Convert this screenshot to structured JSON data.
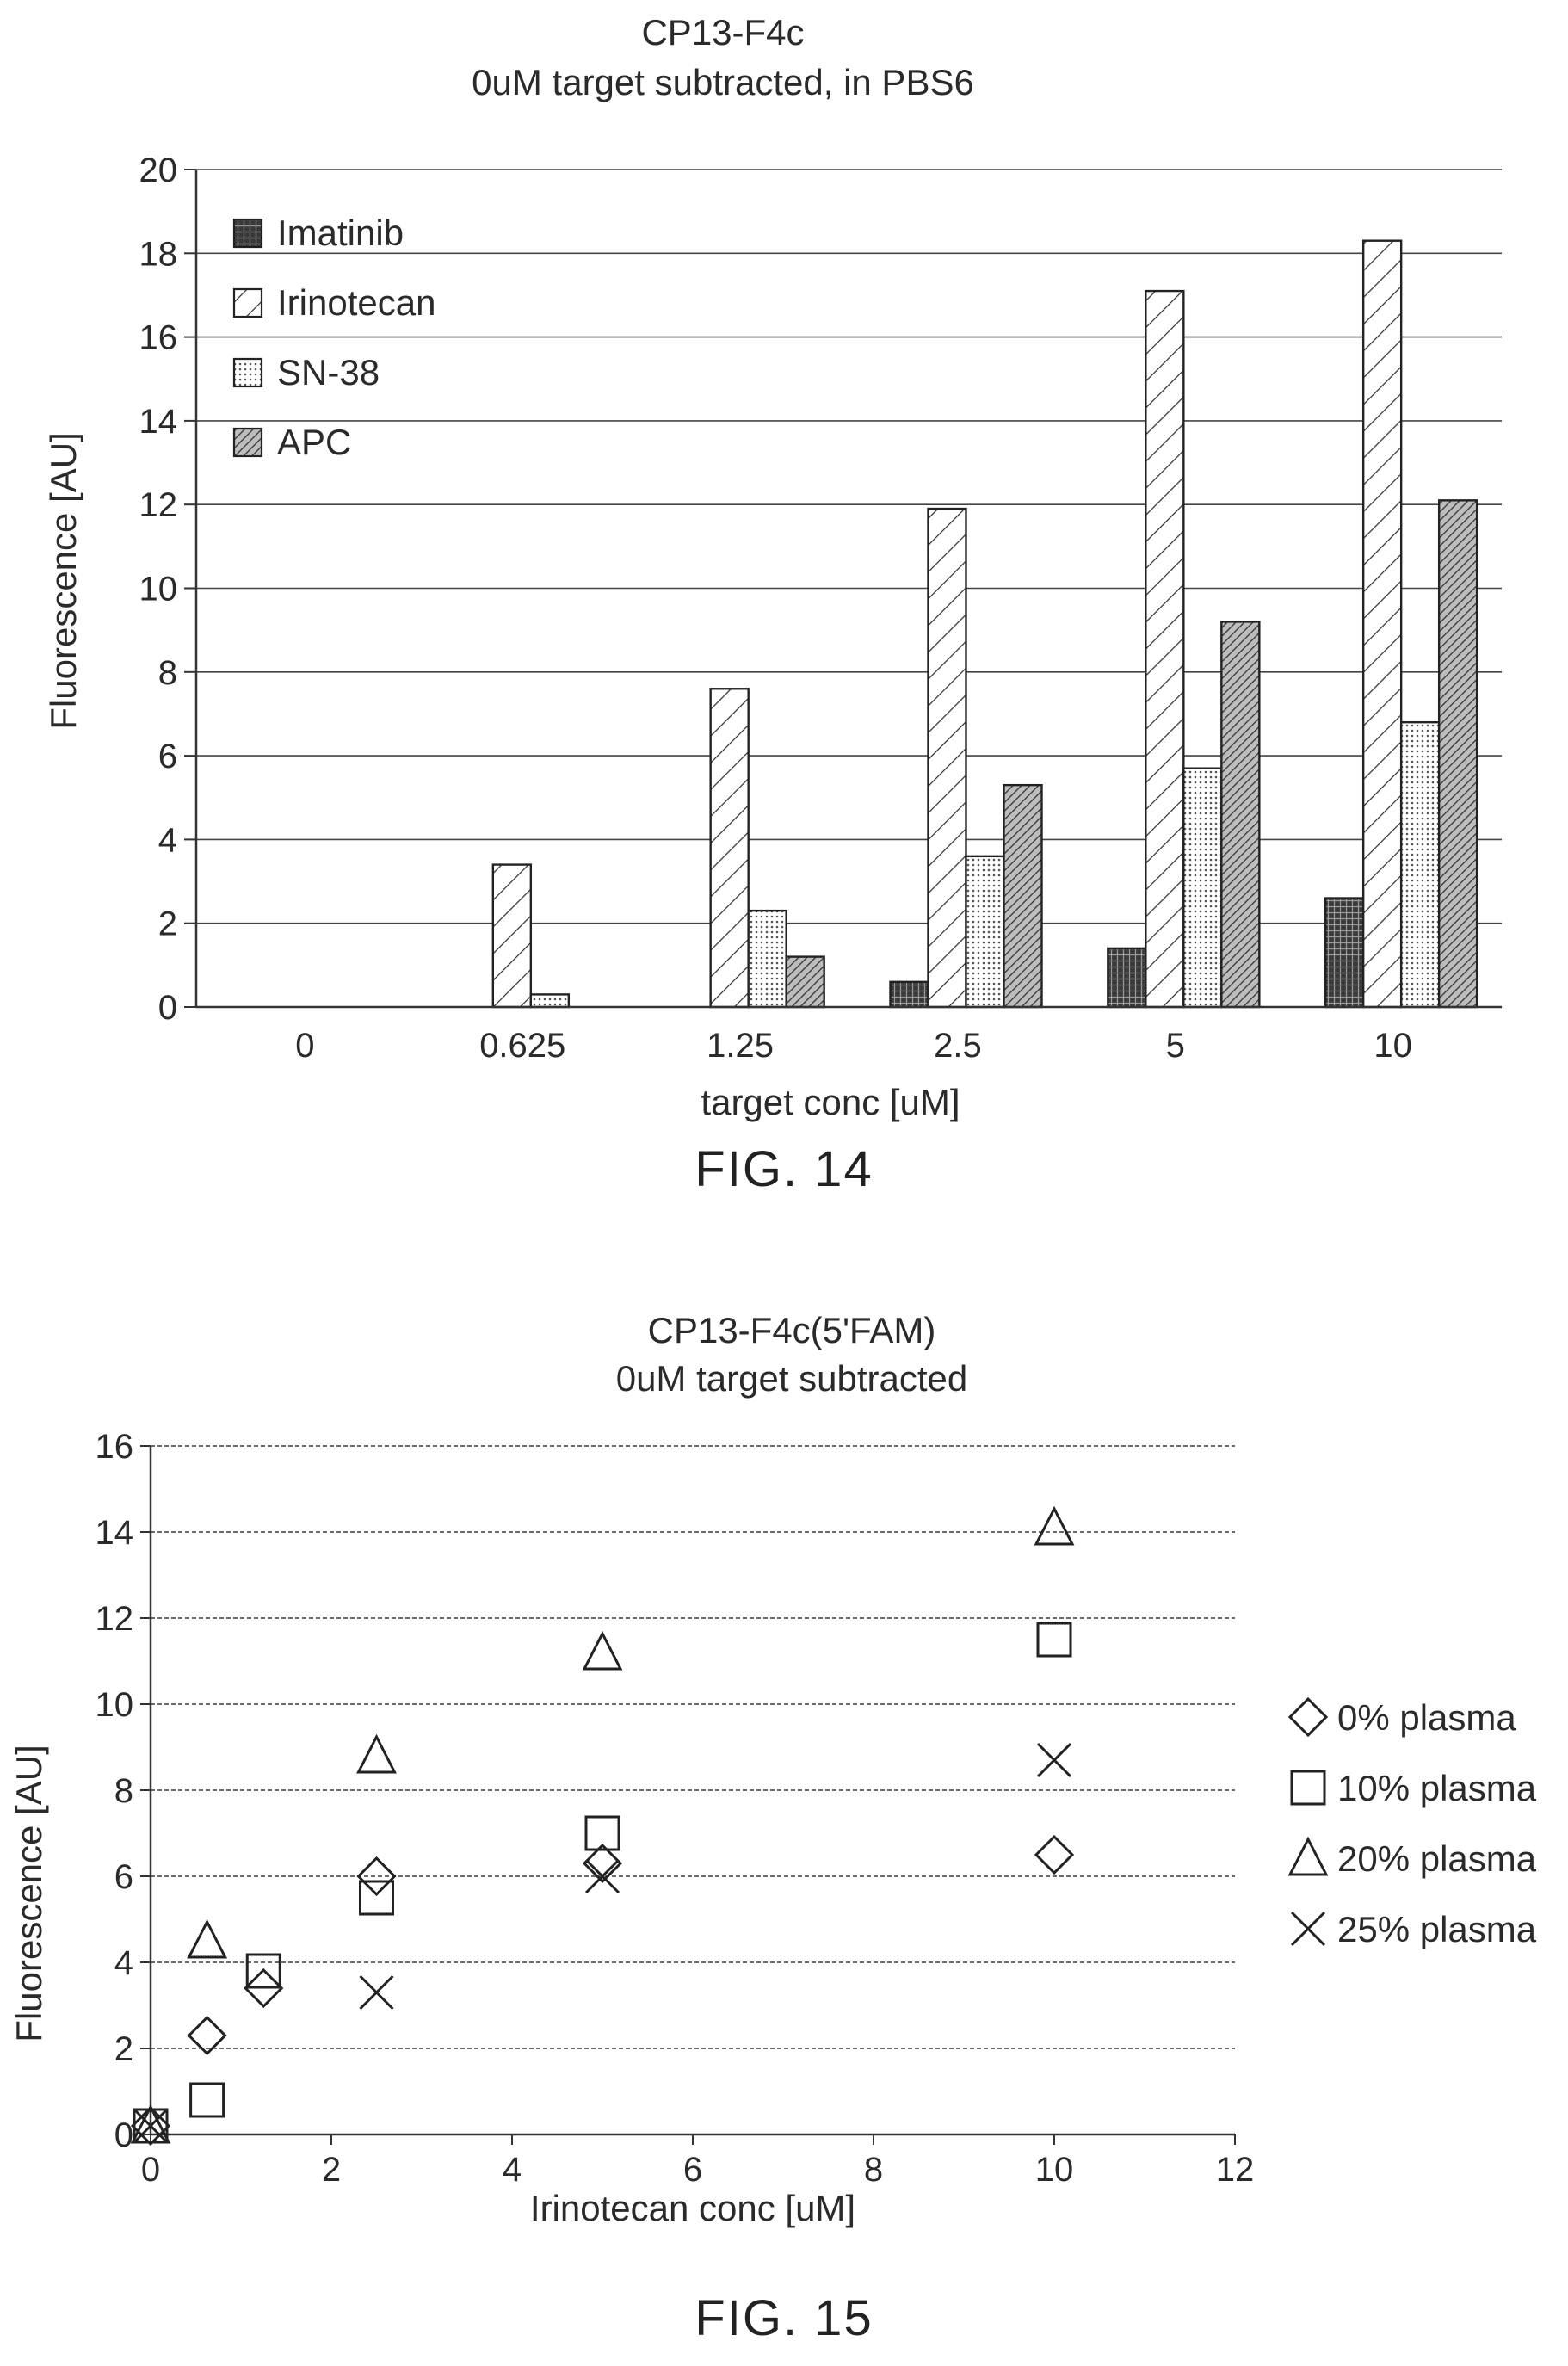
{
  "chart_data": [
    {
      "type": "bar",
      "title": "CP13-F4c",
      "subtitle": "0uM target subtracted, in PBS6",
      "xlabel": "target conc [uM]",
      "ylabel": "Fluorescence [AU]",
      "ylim": [
        0,
        20
      ],
      "yticks": [
        0,
        2,
        4,
        6,
        8,
        10,
        12,
        14,
        16,
        18,
        20
      ],
      "categories": [
        "0",
        "0.625",
        "1.25",
        "2.5",
        "5",
        "10"
      ],
      "series": [
        {
          "name": "Imatinib",
          "pattern": "crosshatch-dark",
          "values": [
            0,
            0,
            0,
            0.6,
            1.4,
            2.6
          ]
        },
        {
          "name": "Irinotecan",
          "pattern": "diagonal-sparse",
          "values": [
            0,
            3.4,
            7.6,
            11.9,
            17.1,
            18.3
          ]
        },
        {
          "name": "SN-38",
          "pattern": "dots",
          "values": [
            0,
            0.3,
            2.3,
            3.6,
            5.7,
            6.8
          ]
        },
        {
          "name": "APC",
          "pattern": "diagonal-dense",
          "values": [
            0,
            0,
            1.2,
            5.3,
            9.2,
            12.1
          ]
        }
      ],
      "grid": "horizontal",
      "legend_position": "top-left",
      "figure_label": "FIG. 14"
    },
    {
      "type": "scatter",
      "title": "CP13-F4c(5'FAM)",
      "subtitle": "0uM target subtracted",
      "xlabel": "Irinotecan conc [uM]",
      "ylabel": "Fluorescence [AU]",
      "xlim": [
        0,
        12
      ],
      "ylim": [
        0,
        16
      ],
      "xticks": [
        0,
        2,
        4,
        6,
        8,
        10,
        12
      ],
      "yticks": [
        0,
        2,
        4,
        6,
        8,
        10,
        12,
        14,
        16
      ],
      "series": [
        {
          "name": "0% plasma",
          "marker": "diamond-icon",
          "x": [
            0,
            0.625,
            1.25,
            2.5,
            5,
            10
          ],
          "y": [
            0.2,
            2.3,
            3.4,
            6.0,
            6.3,
            6.5
          ]
        },
        {
          "name": "10% plasma",
          "marker": "square-icon",
          "x": [
            0,
            0.625,
            1.25,
            2.5,
            5,
            10
          ],
          "y": [
            0.2,
            0.8,
            3.8,
            5.5,
            7.0,
            11.5
          ]
        },
        {
          "name": "20% plasma",
          "marker": "triangle-icon",
          "x": [
            0,
            0.625,
            2.5,
            5,
            10
          ],
          "y": [
            0.2,
            4.5,
            8.8,
            11.2,
            14.1
          ]
        },
        {
          "name": "25% plasma",
          "marker": "x-icon",
          "x": [
            0,
            2.5,
            5,
            10
          ],
          "y": [
            0.2,
            3.3,
            6.0,
            8.7
          ]
        }
      ],
      "grid": "horizontal",
      "legend_position": "right",
      "figure_label": "FIG. 15"
    }
  ]
}
